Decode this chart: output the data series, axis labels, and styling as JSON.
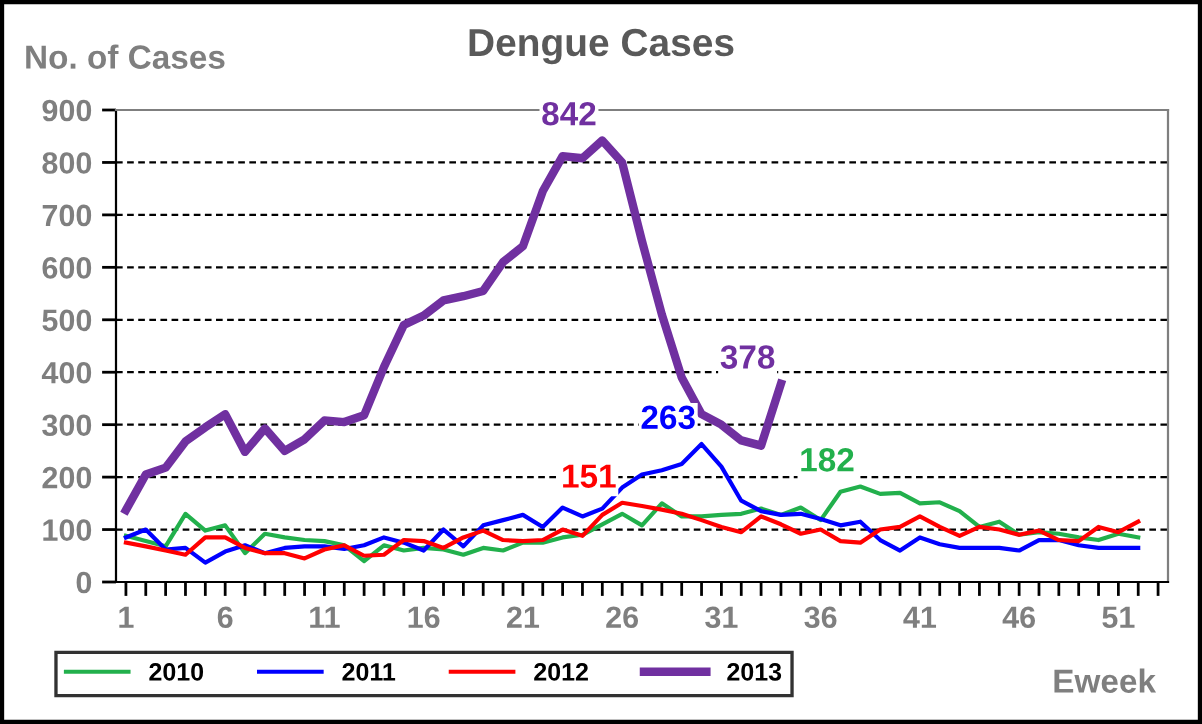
{
  "chart_data": {
    "type": "line",
    "title": "Dengue Cases",
    "ylabel": "No. of Cases",
    "xlabel": "Eweek",
    "x": [
      1,
      2,
      3,
      4,
      5,
      6,
      7,
      8,
      9,
      10,
      11,
      12,
      13,
      14,
      15,
      16,
      17,
      18,
      19,
      20,
      21,
      22,
      23,
      24,
      25,
      26,
      27,
      28,
      29,
      30,
      31,
      32,
      33,
      34,
      35,
      36,
      37,
      38,
      39,
      40,
      41,
      42,
      43,
      44,
      45,
      46,
      47,
      48,
      49,
      50,
      51,
      52
    ],
    "series": [
      {
        "name": "2010",
        "color": "#22b04c",
        "values": [
          88,
          78,
          68,
          130,
          98,
          108,
          55,
          92,
          85,
          80,
          78,
          70,
          40,
          70,
          60,
          65,
          62,
          52,
          65,
          60,
          75,
          75,
          85,
          90,
          110,
          130,
          108,
          150,
          125,
          125,
          128,
          130,
          140,
          128,
          142,
          118,
          172,
          182,
          168,
          170,
          150,
          152,
          135,
          105,
          115,
          90,
          95,
          92,
          85,
          80,
          92,
          85
        ]
      },
      {
        "name": "2011",
        "color": "#0000ff",
        "values": [
          85,
          100,
          62,
          65,
          37,
          58,
          70,
          55,
          65,
          68,
          68,
          63,
          70,
          85,
          75,
          60,
          100,
          68,
          108,
          118,
          128,
          105,
          142,
          125,
          140,
          180,
          205,
          213,
          225,
          263,
          220,
          155,
          135,
          128,
          130,
          120,
          108,
          115,
          80,
          60,
          85,
          72,
          65,
          65,
          65,
          60,
          80,
          80,
          70,
          65,
          65,
          65
        ]
      },
      {
        "name": "2012",
        "color": "#ff0000",
        "values": [
          75,
          68,
          60,
          52,
          85,
          85,
          65,
          55,
          55,
          45,
          62,
          70,
          50,
          52,
          80,
          78,
          65,
          85,
          98,
          80,
          78,
          80,
          100,
          88,
          128,
          151,
          145,
          138,
          130,
          118,
          105,
          95,
          125,
          110,
          92,
          100,
          78,
          75,
          100,
          105,
          125,
          105,
          88,
          105,
          100,
          90,
          98,
          80,
          78,
          105,
          95,
          115
        ]
      },
      {
        "name": "2013",
        "color": "#7030a0",
        "x": [
          1,
          2,
          3,
          4,
          5,
          6,
          7,
          8,
          9,
          10,
          11,
          12,
          13,
          14,
          15,
          16,
          17,
          18,
          19,
          20,
          21,
          22,
          23,
          24,
          25,
          26,
          27,
          28,
          29,
          30,
          31,
          32,
          33,
          34
        ],
        "values": [
          137,
          205,
          218,
          268,
          295,
          320,
          248,
          293,
          250,
          272,
          308,
          305,
          318,
          410,
          490,
          508,
          537,
          545,
          555,
          610,
          640,
          745,
          812,
          808,
          842,
          800,
          650,
          510,
          390,
          320,
          300,
          270,
          260,
          378
        ]
      }
    ],
    "annotations": [
      {
        "text": "842",
        "x": 25,
        "y": 842
      },
      {
        "text": "378",
        "x": 34,
        "y": 378
      },
      {
        "text": "263",
        "x": 30,
        "y": 263
      },
      {
        "text": "151",
        "x": 26,
        "y": 151
      },
      {
        "text": "182",
        "x": 38,
        "y": 182
      }
    ],
    "xlim": [
      0.5,
      53.5
    ],
    "xticks": [
      1,
      6,
      11,
      16,
      21,
      26,
      31,
      36,
      41,
      46,
      51
    ],
    "ylim": [
      0,
      900
    ],
    "yticks": [
      0,
      100,
      200,
      300,
      400,
      500,
      600,
      700,
      800,
      900
    ],
    "grid": "y",
    "legend": "bottom",
    "marker": "none",
    "line_style": "solid"
  }
}
